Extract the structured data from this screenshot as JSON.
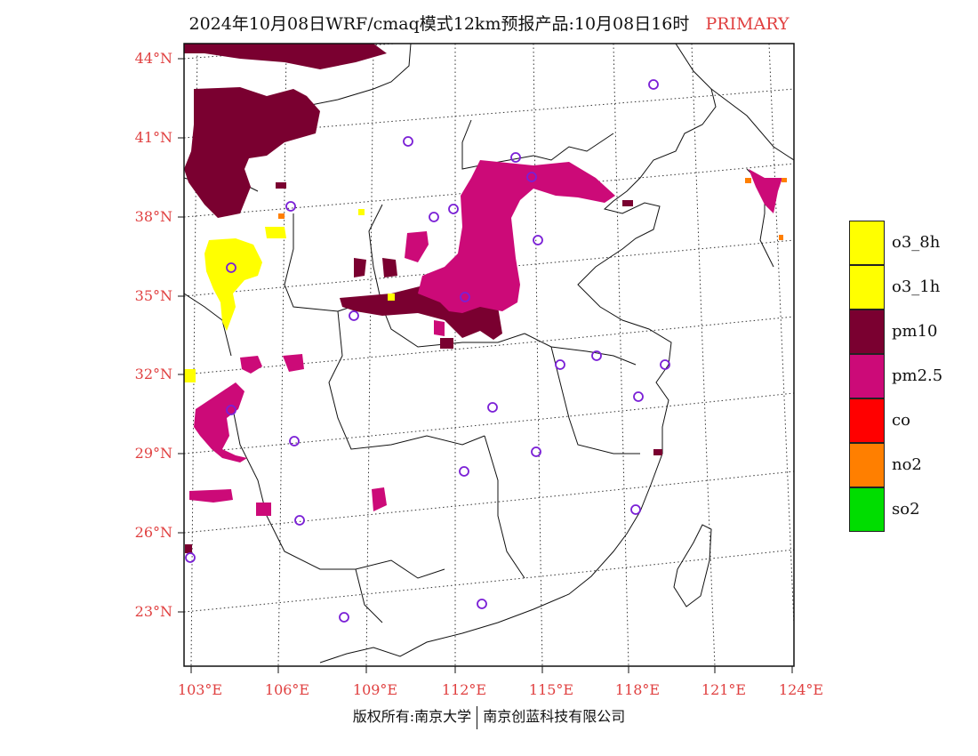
{
  "title": {
    "main": "2024年10月08日WRF/cmaq模式12km预报产品:10月08日16时",
    "tag": "PRIMARY"
  },
  "axes": {
    "lat_labels": [
      "44°N",
      "41°N",
      "38°N",
      "35°N",
      "32°N",
      "29°N",
      "26°N",
      "23°N"
    ],
    "lon_labels": [
      "103°E",
      "106°E",
      "109°E",
      "112°E",
      "115°E",
      "118°E",
      "121°E",
      "124°E"
    ]
  },
  "legend": [
    {
      "label": "o3_8h",
      "color": "#ffff00"
    },
    {
      "label": "o3_1h",
      "color": "#ffff00"
    },
    {
      "label": "pm10",
      "color": "#7a0030"
    },
    {
      "label": "pm2.5",
      "color": "#cc0a78"
    },
    {
      "label": "co",
      "color": "#ff0000"
    },
    {
      "label": "no2",
      "color": "#ff7f00"
    },
    {
      "label": "so2",
      "color": "#00dd00"
    }
  ],
  "colors": {
    "label_red": "#e04040",
    "station_ring": "#7a1fd6",
    "pm10": "#7a0030",
    "pm25": "#cc0a78",
    "o3": "#ffff00",
    "no2": "#ff7f00"
  },
  "footer": {
    "left": "版权所有:南京大学",
    "right": "南京创蓝科技有限公司"
  }
}
